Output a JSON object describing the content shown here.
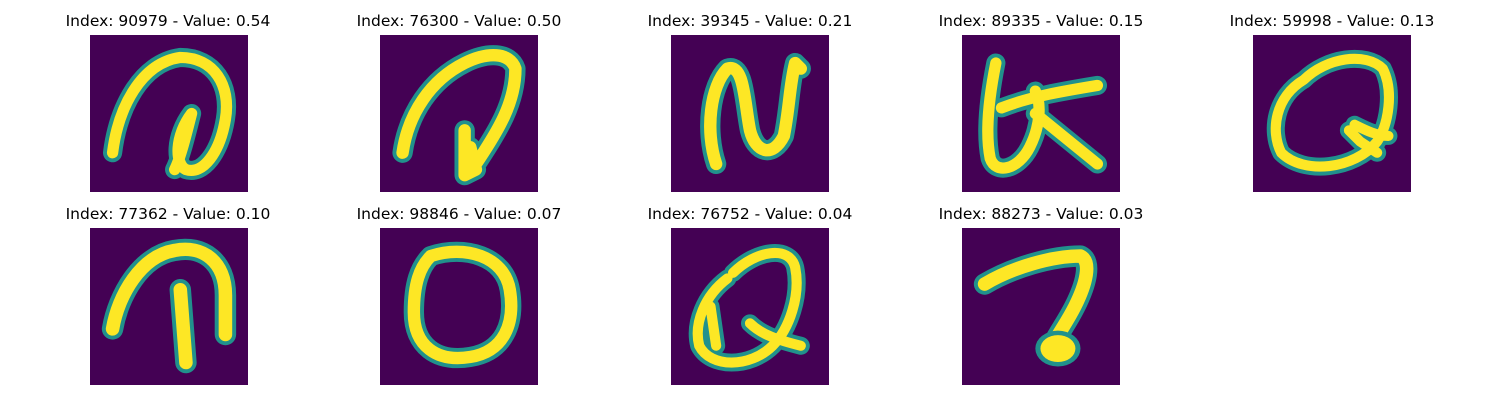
{
  "figure": {
    "colormap": "viridis",
    "background_color": "#440154",
    "stroke_edge_color": "#21918c",
    "stroke_color": "#fde725",
    "panels": [
      {
        "title": "Index: 90979 - Value: 0.54",
        "index": 90979,
        "value": 0.54,
        "glyph": "curled hook stroke"
      },
      {
        "title": "Index: 76300 - Value: 0.50",
        "index": 76300,
        "value": 0.5,
        "glyph": "arch with inner stroke"
      },
      {
        "title": "Index: 39345 - Value: 0.21",
        "index": 39345,
        "value": 0.21,
        "glyph": "N-like zigzag"
      },
      {
        "title": "Index: 89335 - Value: 0.15",
        "index": 89335,
        "value": 0.15,
        "glyph": "loop with crossbar"
      },
      {
        "title": "Index: 59998 - Value: 0.13",
        "index": 59998,
        "value": 0.13,
        "glyph": "Q-like loop"
      },
      {
        "title": "Index: 77362 - Value: 0.10",
        "index": 77362,
        "value": 0.1,
        "glyph": "arch with vertical stem"
      },
      {
        "title": "Index: 98846 - Value: 0.07",
        "index": 98846,
        "value": 0.07,
        "glyph": "O ring"
      },
      {
        "title": "Index: 76752 - Value: 0.04",
        "index": 76752,
        "value": 0.04,
        "glyph": "Q-like loop with tail"
      },
      {
        "title": "Index: 88273 - Value: 0.03",
        "index": 88273,
        "value": 0.03,
        "glyph": "hook with blob"
      }
    ]
  }
}
